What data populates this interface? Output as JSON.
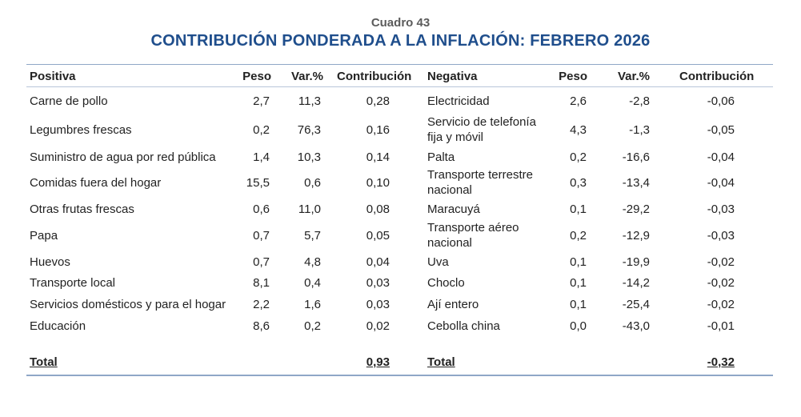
{
  "table": {
    "number": "Cuadro 43",
    "title": "CONTRIBUCIÓN PONDERADA A LA INFLACIÓN: FEBRERO 2026",
    "headers": {
      "positive": "Positiva",
      "weight": "Peso",
      "var": "Var.%",
      "contribution": "Contribución",
      "negative": "Negativa",
      "weight2": "Peso",
      "var2": "Var.%",
      "contribution2": "Contribución"
    },
    "rows": [
      {
        "pos_name": "Carne de pollo",
        "pos_weight": "2,7",
        "pos_var": "11,3",
        "pos_contrib": "0,28",
        "neg_name": "Electricidad",
        "neg_weight": "2,6",
        "neg_var": "-2,8",
        "neg_contrib": "-0,06"
      },
      {
        "pos_name": "Legumbres frescas",
        "pos_weight": "0,2",
        "pos_var": "76,3",
        "pos_contrib": "0,16",
        "neg_name": "Servicio de telefonía fija y móvil",
        "neg_weight": "4,3",
        "neg_var": "-1,3",
        "neg_contrib": "-0,05"
      },
      {
        "pos_name": "Suministro de agua por red pública",
        "pos_weight": "1,4",
        "pos_var": "10,3",
        "pos_contrib": "0,14",
        "neg_name": "Palta",
        "neg_weight": "0,2",
        "neg_var": "-16,6",
        "neg_contrib": "-0,04"
      },
      {
        "pos_name": "Comidas fuera del hogar",
        "pos_weight": "15,5",
        "pos_var": "0,6",
        "pos_contrib": "0,10",
        "neg_name": "Transporte terrestre nacional",
        "neg_weight": "0,3",
        "neg_var": "-13,4",
        "neg_contrib": "-0,04"
      },
      {
        "pos_name": "Otras frutas frescas",
        "pos_weight": "0,6",
        "pos_var": "11,0",
        "pos_contrib": "0,08",
        "neg_name": "Maracuyá",
        "neg_weight": "0,1",
        "neg_var": "-29,2",
        "neg_contrib": "-0,03"
      },
      {
        "pos_name": "Papa",
        "pos_weight": "0,7",
        "pos_var": "5,7",
        "pos_contrib": "0,05",
        "neg_name": "Transporte aéreo nacional",
        "neg_weight": "0,2",
        "neg_var": "-12,9",
        "neg_contrib": "-0,03"
      },
      {
        "pos_name": "Huevos",
        "pos_weight": "0,7",
        "pos_var": "4,8",
        "pos_contrib": "0,04",
        "neg_name": "Uva",
        "neg_weight": "0,1",
        "neg_var": "-19,9",
        "neg_contrib": "-0,02"
      },
      {
        "pos_name": "Transporte local",
        "pos_weight": "8,1",
        "pos_var": "0,4",
        "pos_contrib": "0,03",
        "neg_name": "Choclo",
        "neg_weight": "0,1",
        "neg_var": "-14,2",
        "neg_contrib": "-0,02"
      },
      {
        "pos_name": "Servicios domésticos y para el hogar",
        "pos_weight": "2,2",
        "pos_var": "1,6",
        "pos_contrib": "0,03",
        "neg_name": "Ají entero",
        "neg_weight": "0,1",
        "neg_var": "-25,4",
        "neg_contrib": "-0,02"
      },
      {
        "pos_name": "Educación",
        "pos_weight": "8,6",
        "pos_var": "0,2",
        "pos_contrib": "0,02",
        "neg_name": "Cebolla china",
        "neg_weight": "0,0",
        "neg_var": "-43,0",
        "neg_contrib": "-0,01"
      }
    ],
    "total": {
      "pos_label": "Total",
      "pos_contrib": "0,93",
      "neg_label": "Total",
      "neg_contrib": "-0,32"
    }
  }
}
